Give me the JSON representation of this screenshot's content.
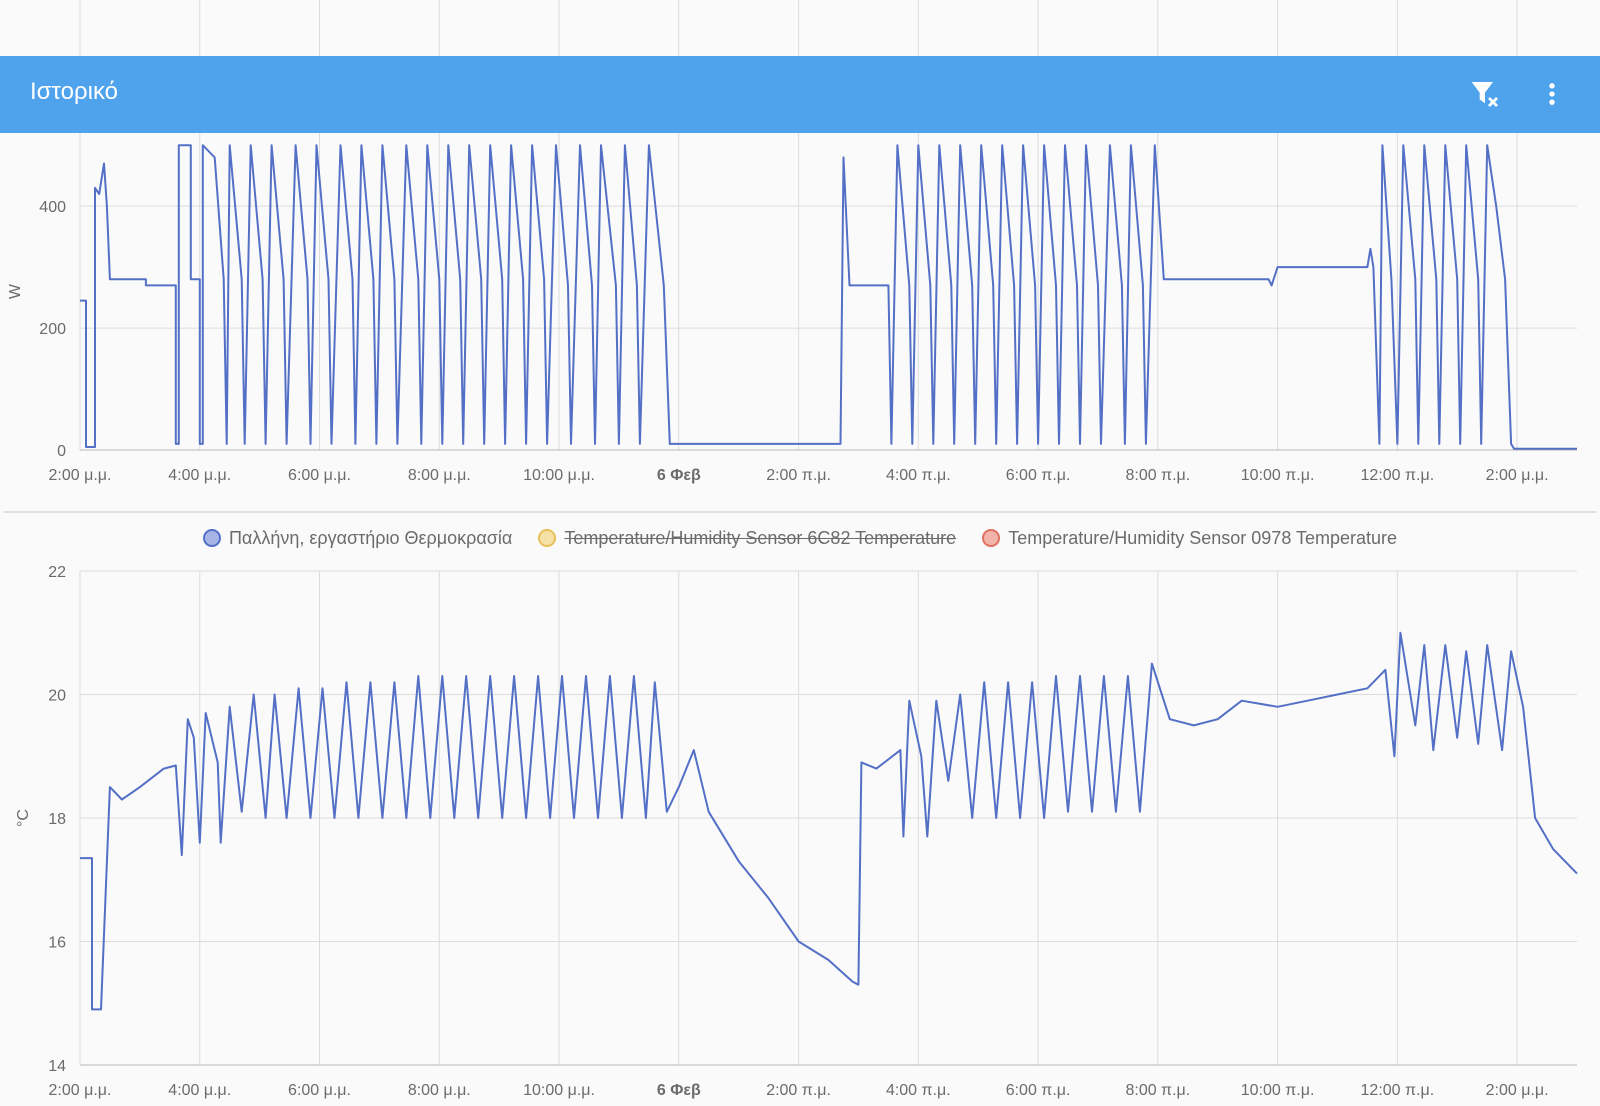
{
  "app": {
    "title": "Ιστορικό",
    "header_color": "#4ea3ec",
    "icons": {
      "filter_clear": "filter-remove-icon",
      "menu": "more-vertical-icon"
    }
  },
  "x_ticks": [
    "2:00 μ.μ.",
    "4:00 μ.μ.",
    "6:00 μ.μ.",
    "8:00 μ.μ.",
    "10:00 μ.μ.",
    "6 Φεβ",
    "2:00 π.μ.",
    "4:00 π.μ.",
    "6:00 π.μ.",
    "8:00 π.μ.",
    "10:00 π.μ.",
    "12:00 π.μ.",
    "2:00 μ.μ."
  ],
  "legend": [
    {
      "label": "Παλλήνη, εργαστήριο Θερμοκρασία",
      "color": "#5470c6",
      "hidden": false
    },
    {
      "label": "Temperature/Humidity Sensor 6C82 Temperature",
      "color": "#e8c05a",
      "hidden": true
    },
    {
      "label": "Temperature/Humidity Sensor 0978 Temperature",
      "color": "#e07060",
      "hidden": false
    }
  ],
  "chart_data": [
    {
      "type": "line",
      "ylabel": "W",
      "ylim": [
        0,
        520
      ],
      "yticks": [
        0,
        200,
        400
      ],
      "x_unit": "hours since 2:00 μ.μ.",
      "xlim": [
        0,
        25
      ],
      "grid": true,
      "color": "#5470c6",
      "series": [
        {
          "name": "",
          "points": [
            [
              0,
              245
            ],
            [
              0.1,
              245
            ],
            [
              0.1,
              5
            ],
            [
              0.25,
              5
            ],
            [
              0.25,
              430
            ],
            [
              0.32,
              420
            ],
            [
              0.4,
              470
            ],
            [
              0.45,
              400
            ],
            [
              0.5,
              280
            ],
            [
              1.1,
              280
            ],
            [
              1.1,
              270
            ],
            [
              1.6,
              270
            ],
            [
              1.6,
              10
            ],
            [
              1.65,
              10
            ],
            [
              1.65,
              500
            ],
            [
              1.85,
              500
            ],
            [
              1.85,
              280
            ],
            [
              2.0,
              280
            ],
            [
              2.0,
              10
            ],
            [
              2.05,
              10
            ],
            [
              2.05,
              500
            ],
            [
              2.25,
              480
            ],
            [
              2.4,
              280
            ],
            [
              2.45,
              10
            ],
            [
              2.5,
              500
            ],
            [
              2.7,
              280
            ],
            [
              2.75,
              10
            ],
            [
              2.85,
              500
            ],
            [
              3.05,
              280
            ],
            [
              3.1,
              10
            ],
            [
              3.2,
              500
            ],
            [
              3.4,
              280
            ],
            [
              3.45,
              10
            ],
            [
              3.6,
              500
            ],
            [
              3.8,
              280
            ],
            [
              3.85,
              10
            ],
            [
              3.95,
              500
            ],
            [
              4.15,
              280
            ],
            [
              4.2,
              10
            ],
            [
              4.35,
              500
            ],
            [
              4.55,
              280
            ],
            [
              4.6,
              10
            ],
            [
              4.7,
              500
            ],
            [
              4.9,
              280
            ],
            [
              4.95,
              10
            ],
            [
              5.05,
              500
            ],
            [
              5.25,
              280
            ],
            [
              5.3,
              10
            ],
            [
              5.45,
              500
            ],
            [
              5.65,
              280
            ],
            [
              5.7,
              10
            ],
            [
              5.8,
              500
            ],
            [
              6.0,
              280
            ],
            [
              6.05,
              10
            ],
            [
              6.15,
              500
            ],
            [
              6.35,
              280
            ],
            [
              6.4,
              10
            ],
            [
              6.5,
              500
            ],
            [
              6.7,
              280
            ],
            [
              6.75,
              10
            ],
            [
              6.85,
              500
            ],
            [
              7.05,
              280
            ],
            [
              7.1,
              10
            ],
            [
              7.2,
              500
            ],
            [
              7.4,
              280
            ],
            [
              7.45,
              10
            ],
            [
              7.55,
              500
            ],
            [
              7.75,
              280
            ],
            [
              7.8,
              10
            ],
            [
              7.95,
              500
            ],
            [
              8.15,
              270
            ],
            [
              8.2,
              10
            ],
            [
              8.35,
              500
            ],
            [
              8.55,
              270
            ],
            [
              8.6,
              10
            ],
            [
              8.7,
              500
            ],
            [
              8.95,
              270
            ],
            [
              9.0,
              10
            ],
            [
              9.1,
              500
            ],
            [
              9.3,
              270
            ],
            [
              9.35,
              10
            ],
            [
              9.5,
              500
            ],
            [
              9.75,
              270
            ],
            [
              9.85,
              10
            ],
            [
              9.9,
              10
            ],
            [
              12.7,
              10
            ],
            [
              12.75,
              480
            ],
            [
              12.85,
              270
            ],
            [
              13.5,
              270
            ],
            [
              13.55,
              10
            ],
            [
              13.65,
              500
            ],
            [
              13.85,
              270
            ],
            [
              13.9,
              10
            ],
            [
              14.0,
              500
            ],
            [
              14.2,
              270
            ],
            [
              14.25,
              10
            ],
            [
              14.35,
              500
            ],
            [
              14.55,
              270
            ],
            [
              14.6,
              10
            ],
            [
              14.7,
              500
            ],
            [
              14.9,
              270
            ],
            [
              14.95,
              10
            ],
            [
              15.05,
              500
            ],
            [
              15.25,
              270
            ],
            [
              15.3,
              10
            ],
            [
              15.4,
              500
            ],
            [
              15.6,
              270
            ],
            [
              15.65,
              10
            ],
            [
              15.75,
              500
            ],
            [
              15.95,
              270
            ],
            [
              16.0,
              10
            ],
            [
              16.1,
              500
            ],
            [
              16.3,
              270
            ],
            [
              16.35,
              10
            ],
            [
              16.45,
              500
            ],
            [
              16.65,
              270
            ],
            [
              16.7,
              10
            ],
            [
              16.8,
              500
            ],
            [
              17.0,
              270
            ],
            [
              17.05,
              10
            ],
            [
              17.2,
              500
            ],
            [
              17.4,
              270
            ],
            [
              17.45,
              10
            ],
            [
              17.55,
              500
            ],
            [
              17.75,
              270
            ],
            [
              17.8,
              10
            ],
            [
              17.95,
              500
            ],
            [
              18.1,
              280
            ],
            [
              19.85,
              280
            ],
            [
              19.9,
              270
            ],
            [
              20.0,
              300
            ],
            [
              21.5,
              300
            ],
            [
              21.55,
              330
            ],
            [
              21.6,
              300
            ],
            [
              21.7,
              10
            ],
            [
              21.75,
              500
            ],
            [
              21.9,
              280
            ],
            [
              22.0,
              10
            ],
            [
              22.1,
              500
            ],
            [
              22.3,
              280
            ],
            [
              22.35,
              10
            ],
            [
              22.45,
              500
            ],
            [
              22.65,
              280
            ],
            [
              22.7,
              10
            ],
            [
              22.8,
              500
            ],
            [
              23.0,
              280
            ],
            [
              23.05,
              10
            ],
            [
              23.15,
              500
            ],
            [
              23.35,
              280
            ],
            [
              23.4,
              10
            ],
            [
              23.5,
              500
            ],
            [
              23.65,
              400
            ],
            [
              23.8,
              280
            ],
            [
              23.9,
              10
            ],
            [
              23.95,
              2
            ],
            [
              25,
              2
            ]
          ]
        }
      ]
    },
    {
      "type": "line",
      "ylabel": "°C",
      "ylim": [
        14,
        22
      ],
      "yticks": [
        14,
        16,
        18,
        20,
        22
      ],
      "x_unit": "hours since 2:00 μ.μ.",
      "xlim": [
        0,
        25
      ],
      "grid": true,
      "color": "#5470c6",
      "series": [
        {
          "name": "Παλλήνη, εργαστήριο Θερμοκρασία",
          "points": [
            [
              0,
              17.35
            ],
            [
              0.2,
              17.35
            ],
            [
              0.2,
              14.9
            ],
            [
              0.35,
              14.9
            ],
            [
              0.5,
              18.5
            ],
            [
              0.7,
              18.3
            ],
            [
              1.0,
              18.5
            ],
            [
              1.4,
              18.8
            ],
            [
              1.6,
              18.85
            ],
            [
              1.7,
              17.4
            ],
            [
              1.8,
              19.6
            ],
            [
              1.9,
              19.3
            ],
            [
              2.0,
              17.6
            ],
            [
              2.1,
              19.7
            ],
            [
              2.3,
              18.9
            ],
            [
              2.35,
              17.6
            ],
            [
              2.5,
              19.8
            ],
            [
              2.7,
              18.1
            ],
            [
              2.9,
              20.0
            ],
            [
              3.1,
              18.0
            ],
            [
              3.25,
              20.0
            ],
            [
              3.45,
              18.0
            ],
            [
              3.65,
              20.1
            ],
            [
              3.85,
              18.0
            ],
            [
              4.05,
              20.1
            ],
            [
              4.25,
              18.0
            ],
            [
              4.45,
              20.2
            ],
            [
              4.65,
              18.0
            ],
            [
              4.85,
              20.2
            ],
            [
              5.05,
              18.0
            ],
            [
              5.25,
              20.2
            ],
            [
              5.45,
              18.0
            ],
            [
              5.65,
              20.3
            ],
            [
              5.85,
              18.0
            ],
            [
              6.05,
              20.3
            ],
            [
              6.25,
              18.0
            ],
            [
              6.45,
              20.3
            ],
            [
              6.65,
              18.0
            ],
            [
              6.85,
              20.3
            ],
            [
              7.05,
              18.0
            ],
            [
              7.25,
              20.3
            ],
            [
              7.45,
              18.0
            ],
            [
              7.65,
              20.3
            ],
            [
              7.85,
              18.0
            ],
            [
              8.05,
              20.3
            ],
            [
              8.25,
              18.0
            ],
            [
              8.45,
              20.3
            ],
            [
              8.65,
              18.0
            ],
            [
              8.85,
              20.3
            ],
            [
              9.05,
              18.0
            ],
            [
              9.25,
              20.3
            ],
            [
              9.45,
              18.0
            ],
            [
              9.6,
              20.2
            ],
            [
              9.8,
              18.1
            ],
            [
              10.0,
              18.5
            ],
            [
              10.25,
              19.1
            ],
            [
              10.5,
              18.1
            ],
            [
              11.0,
              17.3
            ],
            [
              11.5,
              16.7
            ],
            [
              12.0,
              16.0
            ],
            [
              12.5,
              15.7
            ],
            [
              12.9,
              15.35
            ],
            [
              13.0,
              15.3
            ],
            [
              13.05,
              18.9
            ],
            [
              13.3,
              18.8
            ],
            [
              13.7,
              19.1
            ],
            [
              13.75,
              17.7
            ],
            [
              13.85,
              19.9
            ],
            [
              14.05,
              19.0
            ],
            [
              14.15,
              17.7
            ],
            [
              14.3,
              19.9
            ],
            [
              14.5,
              18.6
            ],
            [
              14.7,
              20.0
            ],
            [
              14.9,
              18.0
            ],
            [
              15.1,
              20.2
            ],
            [
              15.3,
              18.0
            ],
            [
              15.5,
              20.2
            ],
            [
              15.7,
              18.0
            ],
            [
              15.9,
              20.2
            ],
            [
              16.1,
              18.0
            ],
            [
              16.3,
              20.3
            ],
            [
              16.5,
              18.1
            ],
            [
              16.7,
              20.3
            ],
            [
              16.9,
              18.1
            ],
            [
              17.1,
              20.3
            ],
            [
              17.3,
              18.1
            ],
            [
              17.5,
              20.3
            ],
            [
              17.7,
              18.1
            ],
            [
              17.9,
              20.5
            ],
            [
              18.2,
              19.6
            ],
            [
              18.6,
              19.5
            ],
            [
              19.0,
              19.6
            ],
            [
              19.4,
              19.9
            ],
            [
              20.0,
              19.8
            ],
            [
              20.5,
              19.9
            ],
            [
              21.0,
              20.0
            ],
            [
              21.5,
              20.1
            ],
            [
              21.8,
              20.4
            ],
            [
              21.95,
              19.0
            ],
            [
              22.05,
              21.0
            ],
            [
              22.3,
              19.5
            ],
            [
              22.45,
              20.8
            ],
            [
              22.6,
              19.1
            ],
            [
              22.8,
              20.8
            ],
            [
              23.0,
              19.3
            ],
            [
              23.15,
              20.7
            ],
            [
              23.35,
              19.2
            ],
            [
              23.5,
              20.8
            ],
            [
              23.75,
              19.1
            ],
            [
              23.9,
              20.7
            ],
            [
              24.1,
              19.8
            ],
            [
              24.3,
              18.0
            ],
            [
              24.6,
              17.5
            ],
            [
              25.0,
              17.1
            ]
          ]
        }
      ]
    }
  ]
}
